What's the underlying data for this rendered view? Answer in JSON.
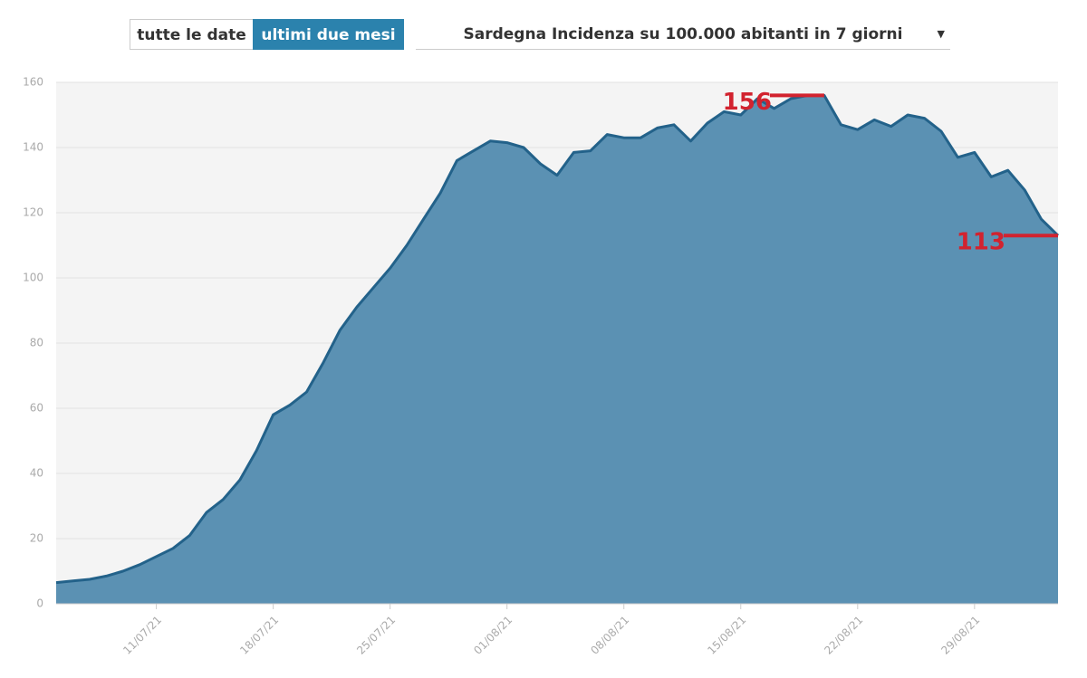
{
  "controls": {
    "buttons": [
      "tutte le date",
      "ultimi due mesi"
    ],
    "active": 1,
    "dropdown": "Sardegna Incidenza su 100.000 abitanti in 7 giorni"
  },
  "chart_data": {
    "type": "area",
    "categories": [
      null,
      null,
      null,
      null,
      null,
      null,
      "11/07/21",
      null,
      null,
      null,
      null,
      null,
      null,
      "18/07/21",
      null,
      null,
      null,
      null,
      null,
      null,
      "25/07/21",
      null,
      null,
      null,
      null,
      null,
      null,
      "01/08/21",
      null,
      null,
      null,
      null,
      null,
      null,
      "08/08/21",
      null,
      null,
      null,
      null,
      null,
      null,
      "15/08/21",
      null,
      null,
      null,
      null,
      null,
      null,
      "22/08/21",
      null,
      null,
      null,
      null,
      null,
      null,
      "29/08/21",
      null,
      null,
      null,
      null,
      null
    ],
    "values": [
      6.5,
      7,
      7.5,
      8.5,
      10,
      12,
      14.5,
      17,
      21,
      28,
      32,
      38,
      47,
      58,
      61,
      65,
      74,
      84,
      91,
      97,
      103,
      110,
      118,
      126,
      136,
      139,
      142,
      141.5,
      140,
      135,
      131.5,
      138.5,
      139,
      144,
      143,
      143,
      146,
      147,
      142,
      147.5,
      151,
      150,
      155,
      152,
      155,
      156,
      156,
      147,
      145.5,
      148.5,
      146.5,
      150,
      149,
      145,
      137,
      138.5,
      131,
      133,
      127,
      118,
      113
    ],
    "color": "#5b91b3",
    "line_color": "#23628a",
    "ylim": [
      0,
      160
    ],
    "yticks": [
      0,
      20,
      40,
      60,
      80,
      100,
      120,
      140,
      160
    ],
    "grid": true,
    "annotations": [
      156,
      113
    ],
    "annotation_color": "#d2232f"
  }
}
